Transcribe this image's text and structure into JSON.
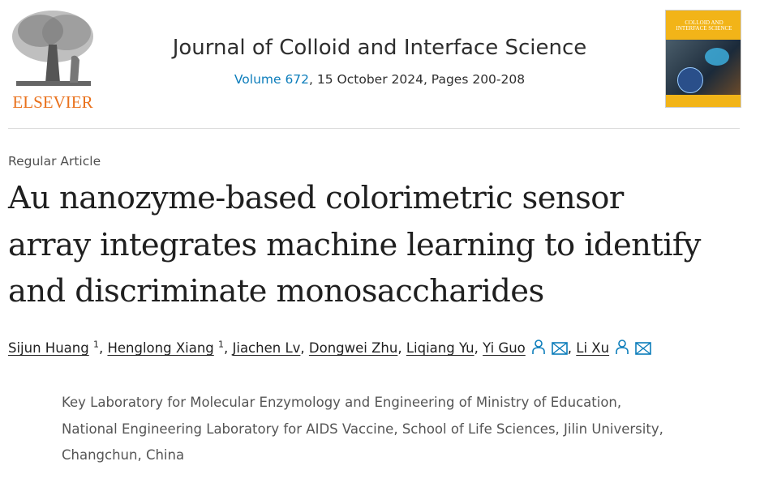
{
  "publisher": {
    "logo_text": "ELSEVIER"
  },
  "journal": {
    "title": "Journal of Colloid and Interface Science",
    "volume_link": "Volume 672",
    "issue_details": ", 15 October 2024, Pages 200-208",
    "cover_text": "COLLOID AND INTERFACE SCIENCE"
  },
  "article": {
    "type": "Regular Article",
    "title_lines": [
      "Au nanozyme-based colorimetric sensor",
      "array integrates machine learning to identify",
      "and discriminate monosaccharides"
    ]
  },
  "authors": [
    {
      "name": "Sijun Huang",
      "sup": "1",
      "sep": ", "
    },
    {
      "name": "Henglong Xiang",
      "sup": "1",
      "sep": ", "
    },
    {
      "name": "Jiachen Lv",
      "sep": ", "
    },
    {
      "name": "Dongwei Zhu",
      "sep": ", "
    },
    {
      "name": "Liqiang Yu",
      "sep": ", "
    },
    {
      "name": "Yi Guo",
      "sep": ", "
    },
    {
      "name": "Li Xu"
    }
  ],
  "affiliation_lines": [
    "Key Laboratory for Molecular Enzymology and Engineering of Ministry of Education,",
    "National Engineering Laboratory for AIDS Vaccine, School of Life Sciences, Jilin University,",
    "Changchun, China"
  ],
  "colors": {
    "link": "#0c7dbb",
    "elsevier_orange": "#e9711c",
    "cover": "#f2b418"
  },
  "icons": [
    "person-icon",
    "envelope-icon"
  ]
}
